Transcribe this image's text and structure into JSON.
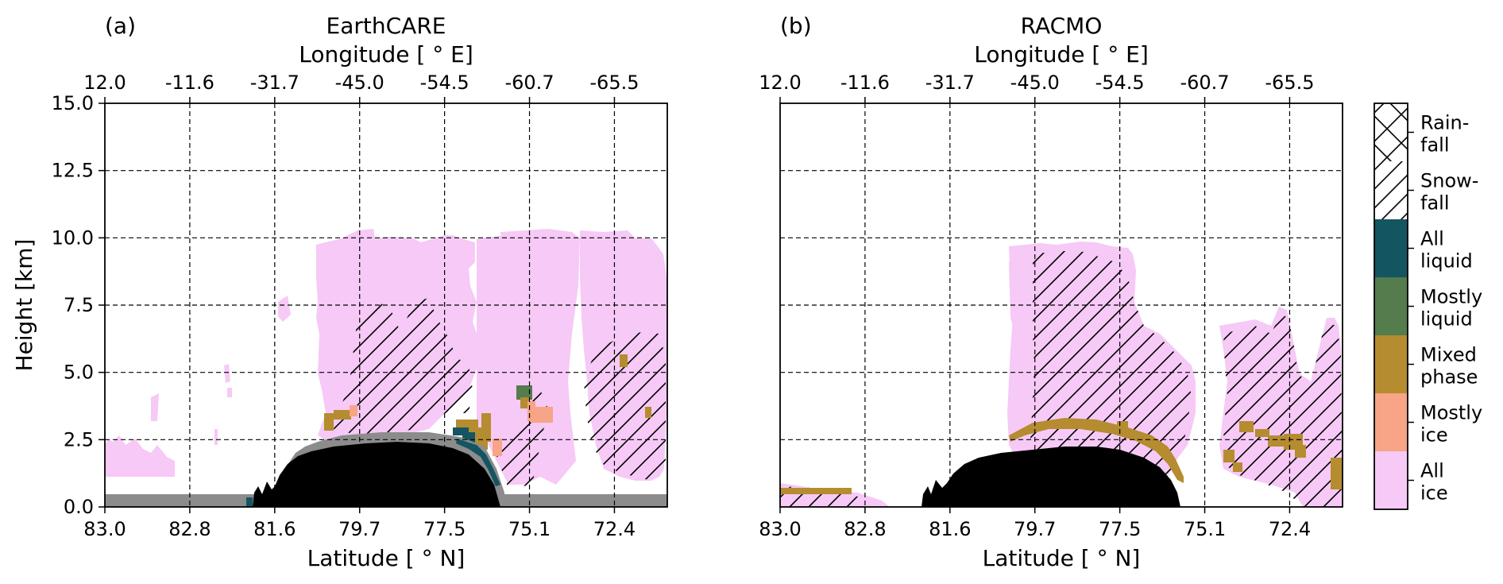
{
  "chart_data": [
    {
      "type": "heatmap",
      "panel_label": "(a)",
      "title": "EarthCARE",
      "xlabel": "Latitude [$^\\circ$N]",
      "xlabel_text": "Latitude [ ° N]",
      "ylabel": "Height [km]",
      "secondary_xlabel": "Longitude [ ° E]",
      "ylim": [
        0,
        15
      ],
      "xlim_km": [
        0,
        1
      ],
      "x_ticks": [
        "83.0",
        "82.8",
        "81.6",
        "79.7",
        "77.5",
        "75.1",
        "72.4"
      ],
      "top_ticks": [
        "12.0",
        "-11.6",
        "-31.7",
        "-45.0",
        "-54.5",
        "-60.7",
        "-65.5"
      ],
      "y_ticks": [
        "0.0",
        "2.5",
        "5.0",
        "7.5",
        "10.0",
        "12.5",
        "15.0"
      ],
      "grid": true,
      "colors": {
        "surface": "#000000",
        "clutter": "#8c8c8c",
        "all_ice": "#f6c9f6",
        "mostly_ice": "#f7a487",
        "mixed": "#b58c2f",
        "mostly_liquid": "#547c4c",
        "all_liquid": "#145562"
      }
    },
    {
      "type": "heatmap",
      "panel_label": "(b)",
      "title": "RACMO",
      "xlabel_text": "Latitude [ ° N]",
      "secondary_xlabel": "Longitude [ ° E]",
      "ylim": [
        0,
        15
      ],
      "x_ticks": [
        "83.0",
        "82.8",
        "81.6",
        "79.7",
        "77.5",
        "75.1",
        "72.4"
      ],
      "top_ticks": [
        "12.0",
        "-11.6",
        "-31.7",
        "-45.0",
        "-54.5",
        "-60.7",
        "-65.5"
      ],
      "grid": true
    }
  ],
  "legend": {
    "items": [
      {
        "label": [
          "Rain-",
          "fall"
        ],
        "fill": "#ffffff",
        "pattern": "cross"
      },
      {
        "label": [
          "Snow-",
          "fall"
        ],
        "fill": "#ffffff",
        "pattern": "hatch"
      },
      {
        "label": [
          "All",
          "liquid"
        ],
        "fill": "#145562"
      },
      {
        "label": [
          "Mostly",
          "liquid"
        ],
        "fill": "#547c4c"
      },
      {
        "label": [
          "Mixed",
          "phase"
        ],
        "fill": "#b58c2f"
      },
      {
        "label": [
          "Mostly",
          "ice"
        ],
        "fill": "#f7a487"
      },
      {
        "label": [
          "All",
          "ice"
        ],
        "fill": "#f6c9f6"
      }
    ]
  }
}
